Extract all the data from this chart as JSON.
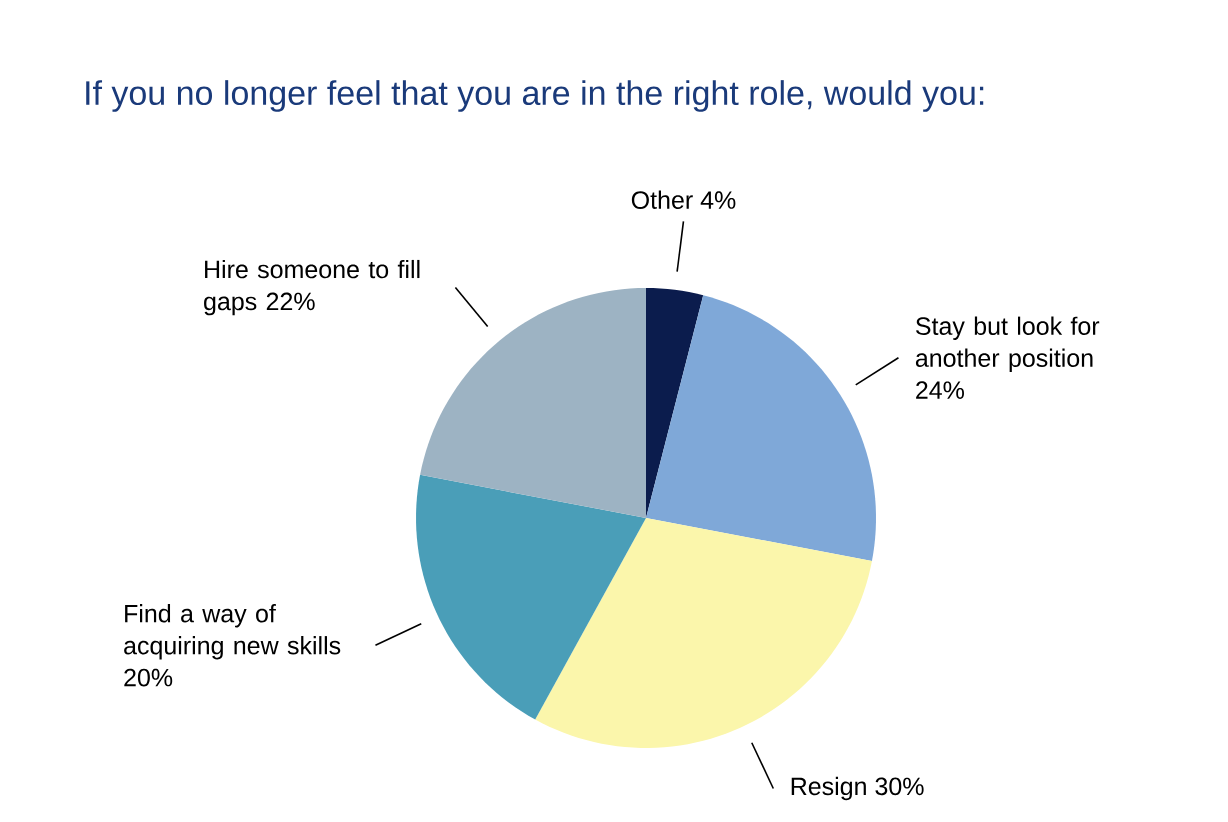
{
  "chart_data": {
    "type": "pie",
    "title": "If you no longer feel that you are in the right role, would you:",
    "categories": [
      "Other",
      "Stay but look for another position",
      "Resign",
      "Find a way of acquiring new skills",
      "Hire someone to fill gaps"
    ],
    "values": [
      4,
      24,
      30,
      20,
      22
    ],
    "value_labels": [
      "4%",
      "24%",
      "30%",
      "20%",
      "22%"
    ],
    "colors": [
      "#0b1c4d",
      "#7fa8d8",
      "#fbf6ab",
      "#4a9eb8",
      "#9db3c3"
    ]
  }
}
